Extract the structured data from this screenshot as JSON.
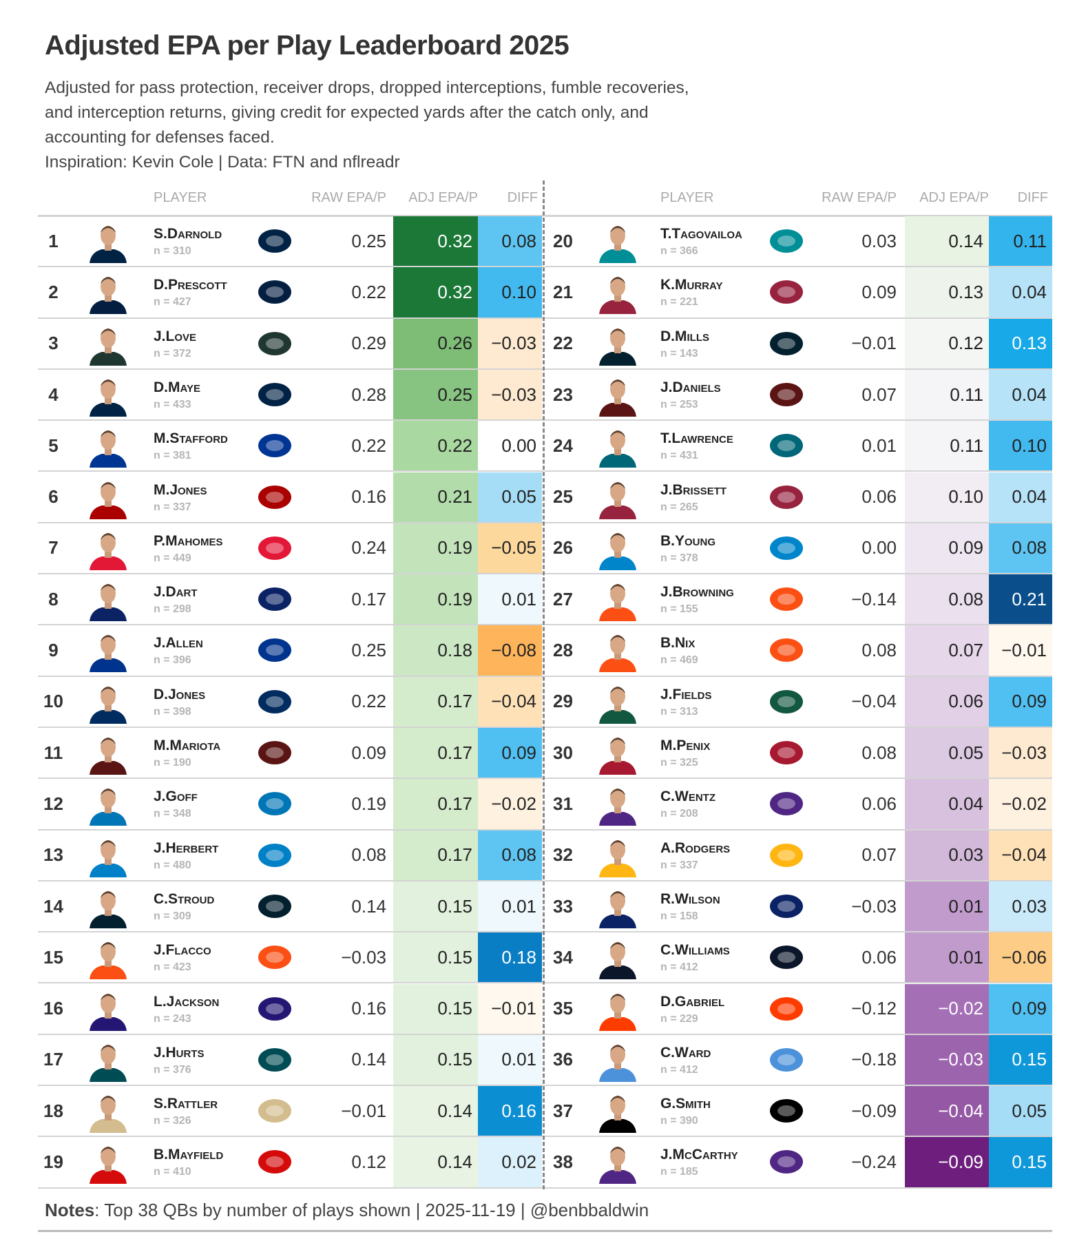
{
  "title": "Adjusted EPA per Play Leaderboard 2025",
  "subtitle_lines": [
    "Adjusted for pass protection, receiver drops, dropped interceptions, fumble recoveries,",
    "and interception returns, giving credit for expected yards after the catch only, and",
    "accounting for defenses faced.",
    "Inspiration: Kevin Cole | Data: FTN and nflreadr"
  ],
  "headers": {
    "player": "PLAYER",
    "raw": "RAW EPA/P",
    "adj": "ADJ EPA/P",
    "diff": "DIFF"
  },
  "notes": {
    "label": "Notes",
    "text": ": Top 38 QBs by number of plays shown | 2025-11-19 | @benbbaldwin"
  },
  "team_colors": {
    "SEA": "#002244",
    "DAL": "#041e42",
    "GB": "#203731",
    "NE": "#002244",
    "LA": "#003594",
    "SF": "#aa0000",
    "KC": "#e31837",
    "NYG": "#0b2265",
    "BUF": "#00338d",
    "IND": "#002c5f",
    "WAS": "#5a1414",
    "DET": "#0076b6",
    "LAC": "#0080c6",
    "HOU": "#03202f",
    "CIN": "#fb4f14",
    "BAL": "#241773",
    "PHI": "#004c54",
    "NO": "#d3bc8d",
    "TB": "#d50a0a",
    "MIA": "#008e97",
    "ARI": "#97233f",
    "JAX": "#006778",
    "CAR": "#0085ca",
    "DEN": "#fb4f14",
    "NYJ": "#125740",
    "ATL": "#a71930",
    "MIN": "#4f2683",
    "PIT": "#ffb612",
    "CHI": "#0b162a",
    "CLE": "#ff3c00",
    "TEN": "#4b92db",
    "LV": "#000000"
  },
  "chart_data": {
    "type": "table",
    "title": "Adjusted EPA per Play Leaderboard 2025",
    "columns": [
      "rank",
      "player",
      "n",
      "team",
      "raw_epa",
      "adj_epa",
      "diff"
    ],
    "rows": [
      {
        "rank": "1",
        "name": "S.Darnold",
        "n": "n = 310",
        "team": "SEA",
        "raw": "0.25",
        "adj": "0.32",
        "diff": "0.08"
      },
      {
        "rank": "2",
        "name": "D.Prescott",
        "n": "n = 427",
        "team": "DAL",
        "raw": "0.22",
        "adj": "0.32",
        "diff": "0.10"
      },
      {
        "rank": "3",
        "name": "J.Love",
        "n": "n = 372",
        "team": "GB",
        "raw": "0.29",
        "adj": "0.26",
        "diff": "−0.03"
      },
      {
        "rank": "4",
        "name": "D.Maye",
        "n": "n = 433",
        "team": "NE",
        "raw": "0.28",
        "adj": "0.25",
        "diff": "−0.03"
      },
      {
        "rank": "5",
        "name": "M.Stafford",
        "n": "n = 381",
        "team": "LA",
        "raw": "0.22",
        "adj": "0.22",
        "diff": "0.00"
      },
      {
        "rank": "6",
        "name": "M.Jones",
        "n": "n = 337",
        "team": "SF",
        "raw": "0.16",
        "adj": "0.21",
        "diff": "0.05"
      },
      {
        "rank": "7",
        "name": "P.Mahomes",
        "n": "n = 449",
        "team": "KC",
        "raw": "0.24",
        "adj": "0.19",
        "diff": "−0.05"
      },
      {
        "rank": "8",
        "name": "J.Dart",
        "n": "n = 298",
        "team": "NYG",
        "raw": "0.17",
        "adj": "0.19",
        "diff": "0.01"
      },
      {
        "rank": "9",
        "name": "J.Allen",
        "n": "n = 396",
        "team": "BUF",
        "raw": "0.25",
        "adj": "0.18",
        "diff": "−0.08"
      },
      {
        "rank": "10",
        "name": "D.Jones",
        "n": "n = 398",
        "team": "IND",
        "raw": "0.22",
        "adj": "0.17",
        "diff": "−0.04"
      },
      {
        "rank": "11",
        "name": "M.Mariota",
        "n": "n = 190",
        "team": "WAS",
        "raw": "0.09",
        "adj": "0.17",
        "diff": "0.09"
      },
      {
        "rank": "12",
        "name": "J.Goff",
        "n": "n = 348",
        "team": "DET",
        "raw": "0.19",
        "adj": "0.17",
        "diff": "−0.02"
      },
      {
        "rank": "13",
        "name": "J.Herbert",
        "n": "n = 480",
        "team": "LAC",
        "raw": "0.08",
        "adj": "0.17",
        "diff": "0.08"
      },
      {
        "rank": "14",
        "name": "C.Stroud",
        "n": "n = 309",
        "team": "HOU",
        "raw": "0.14",
        "adj": "0.15",
        "diff": "0.01"
      },
      {
        "rank": "15",
        "name": "J.Flacco",
        "n": "n = 423",
        "team": "CIN",
        "raw": "−0.03",
        "adj": "0.15",
        "diff": "0.18"
      },
      {
        "rank": "16",
        "name": "L.Jackson",
        "n": "n = 243",
        "team": "BAL",
        "raw": "0.16",
        "adj": "0.15",
        "diff": "−0.01"
      },
      {
        "rank": "17",
        "name": "J.Hurts",
        "n": "n = 376",
        "team": "PHI",
        "raw": "0.14",
        "adj": "0.15",
        "diff": "0.01"
      },
      {
        "rank": "18",
        "name": "S.Rattler",
        "n": "n = 326",
        "team": "NO",
        "raw": "−0.01",
        "adj": "0.14",
        "diff": "0.16"
      },
      {
        "rank": "19",
        "name": "B.Mayfield",
        "n": "n = 410",
        "team": "TB",
        "raw": "0.12",
        "adj": "0.14",
        "diff": "0.02"
      },
      {
        "rank": "20",
        "name": "T.Tagovailoa",
        "n": "n = 366",
        "team": "MIA",
        "raw": "0.03",
        "adj": "0.14",
        "diff": "0.11"
      },
      {
        "rank": "21",
        "name": "K.Murray",
        "n": "n = 221",
        "team": "ARI",
        "raw": "0.09",
        "adj": "0.13",
        "diff": "0.04"
      },
      {
        "rank": "22",
        "name": "D.Mills",
        "n": "n = 143",
        "team": "HOU",
        "raw": "−0.01",
        "adj": "0.12",
        "diff": "0.13"
      },
      {
        "rank": "23",
        "name": "J.Daniels",
        "n": "n = 253",
        "team": "WAS",
        "raw": "0.07",
        "adj": "0.11",
        "diff": "0.04"
      },
      {
        "rank": "24",
        "name": "T.Lawrence",
        "n": "n = 431",
        "team": "JAX",
        "raw": "0.01",
        "adj": "0.11",
        "diff": "0.10"
      },
      {
        "rank": "25",
        "name": "J.Brissett",
        "n": "n = 265",
        "team": "ARI",
        "raw": "0.06",
        "adj": "0.10",
        "diff": "0.04"
      },
      {
        "rank": "26",
        "name": "B.Young",
        "n": "n = 378",
        "team": "CAR",
        "raw": "0.00",
        "adj": "0.09",
        "diff": "0.08"
      },
      {
        "rank": "27",
        "name": "J.Browning",
        "n": "n = 155",
        "team": "CIN",
        "raw": "−0.14",
        "adj": "0.08",
        "diff": "0.21"
      },
      {
        "rank": "28",
        "name": "B.Nix",
        "n": "n = 469",
        "team": "DEN",
        "raw": "0.08",
        "adj": "0.07",
        "diff": "−0.01"
      },
      {
        "rank": "29",
        "name": "J.Fields",
        "n": "n = 313",
        "team": "NYJ",
        "raw": "−0.04",
        "adj": "0.06",
        "diff": "0.09"
      },
      {
        "rank": "30",
        "name": "M.Penix",
        "n": "n = 325",
        "team": "ATL",
        "raw": "0.08",
        "adj": "0.05",
        "diff": "−0.03"
      },
      {
        "rank": "31",
        "name": "C.Wentz",
        "n": "n = 208",
        "team": "MIN",
        "raw": "0.06",
        "adj": "0.04",
        "diff": "−0.02"
      },
      {
        "rank": "32",
        "name": "A.Rodgers",
        "n": "n = 337",
        "team": "PIT",
        "raw": "0.07",
        "adj": "0.03",
        "diff": "−0.04"
      },
      {
        "rank": "33",
        "name": "R.Wilson",
        "n": "n = 158",
        "team": "NYG",
        "raw": "−0.03",
        "adj": "0.01",
        "diff": "0.03"
      },
      {
        "rank": "34",
        "name": "C.Williams",
        "n": "n = 412",
        "team": "CHI",
        "raw": "0.06",
        "adj": "0.01",
        "diff": "−0.06"
      },
      {
        "rank": "35",
        "name": "D.Gabriel",
        "n": "n = 229",
        "team": "CLE",
        "raw": "−0.12",
        "adj": "−0.02",
        "diff": "0.09"
      },
      {
        "rank": "36",
        "name": "C.Ward",
        "n": "n = 412",
        "team": "TEN",
        "raw": "−0.18",
        "adj": "−0.03",
        "diff": "0.15"
      },
      {
        "rank": "37",
        "name": "G.Smith",
        "n": "n = 390",
        "team": "LV",
        "raw": "−0.09",
        "adj": "−0.04",
        "diff": "0.05"
      },
      {
        "rank": "38",
        "name": "J.McCarthy",
        "n": "n = 185",
        "team": "MIN",
        "raw": "−0.24",
        "adj": "−0.09",
        "diff": "0.15"
      }
    ]
  }
}
